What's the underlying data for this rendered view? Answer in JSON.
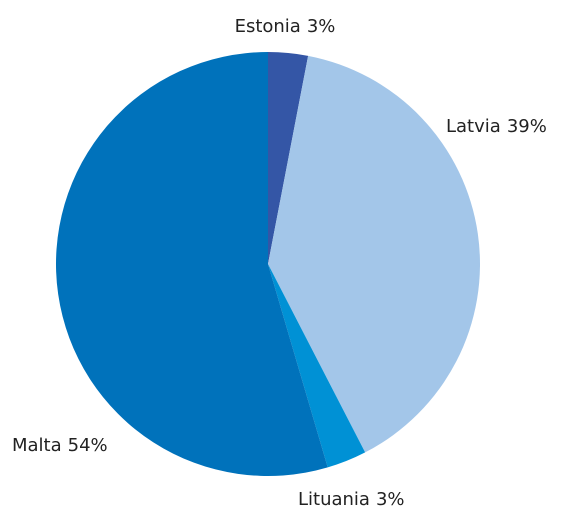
{
  "chart_data": {
    "type": "pie",
    "categories": [
      "Estonia",
      "Latvia",
      "Lituania",
      "Malta"
    ],
    "values": [
      3,
      39,
      3,
      54
    ],
    "value_labels": [
      "3%",
      "39%",
      "3%",
      "54%"
    ],
    "colors": [
      "#3456a6",
      "#a3c6e9",
      "#0091d5",
      "#0072bb"
    ]
  }
}
